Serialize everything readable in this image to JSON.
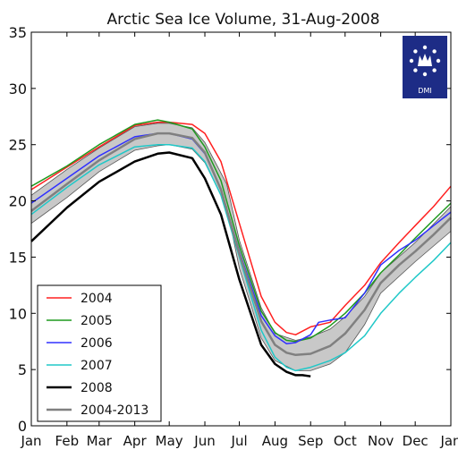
{
  "chart_data": {
    "type": "line",
    "title": "Arctic Sea Ice Volume, 31-Aug-2008",
    "ylabel": "",
    "xlabel": "",
    "ylim": [
      0,
      35
    ],
    "xlim": [
      0,
      365
    ],
    "yticks": [
      0,
      5,
      10,
      15,
      20,
      25,
      30,
      35
    ],
    "x_ticks": [
      {
        "label": "Jan",
        "x": 0
      },
      {
        "label": "Feb",
        "x": 31
      },
      {
        "label": "Mar",
        "x": 59
      },
      {
        "label": "Apr",
        "x": 90
      },
      {
        "label": "May",
        "x": 120
      },
      {
        "label": "Jun",
        "x": 151
      },
      {
        "label": "Jul",
        "x": 181
      },
      {
        "label": "Aug",
        "x": 212
      },
      {
        "label": "Sep",
        "x": 243
      },
      {
        "label": "Oct",
        "x": 273
      },
      {
        "label": "Nov",
        "x": 304
      },
      {
        "label": "Dec",
        "x": 334
      },
      {
        "label": "Jan",
        "x": 365
      }
    ],
    "grid": false,
    "legend_position": "bottom-left",
    "logo_text": "DMI",
    "band": {
      "name": "2004-2013 range",
      "x": [
        0,
        31,
        59,
        90,
        110,
        120,
        140,
        151,
        170,
        181,
        200,
        212,
        230,
        243,
        260,
        273,
        290,
        304,
        334,
        365
      ],
      "upper": [
        20.5,
        22.8,
        24.7,
        26.6,
        26.9,
        26.9,
        26.5,
        25.2,
        21.5,
        16.5,
        10.5,
        8.2,
        7.6,
        7.9,
        8.6,
        9.7,
        11.5,
        13.6,
        16.3,
        19.5
      ],
      "lower": [
        18.0,
        20.3,
        22.6,
        24.5,
        24.9,
        25.0,
        24.6,
        23.4,
        19.5,
        14.0,
        7.8,
        5.8,
        4.9,
        4.9,
        5.5,
        6.5,
        9.0,
        11.8,
        14.6,
        17.3
      ]
    },
    "series": [
      {
        "name": "2004",
        "color": "#ff2020",
        "width": 1.5,
        "x": [
          0,
          31,
          59,
          90,
          110,
          120,
          140,
          151,
          165,
          181,
          200,
          212,
          222,
          230,
          243,
          260,
          273,
          290,
          304,
          320,
          334,
          350,
          365
        ],
        "y": [
          21.0,
          23.0,
          24.8,
          26.7,
          27.0,
          27.0,
          26.8,
          26.0,
          23.5,
          18.0,
          11.5,
          9.2,
          8.3,
          8.1,
          8.8,
          9.2,
          10.7,
          12.5,
          14.5,
          16.3,
          17.8,
          19.5,
          21.3
        ]
      },
      {
        "name": "2005",
        "color": "#1f9a1f",
        "width": 1.5,
        "x": [
          0,
          31,
          59,
          90,
          110,
          120,
          140,
          151,
          165,
          181,
          200,
          212,
          222,
          230,
          243,
          260,
          273,
          290,
          304,
          320,
          334,
          350,
          365
        ],
        "y": [
          21.3,
          23.1,
          25.0,
          26.8,
          27.2,
          27.0,
          26.4,
          24.8,
          21.8,
          16.0,
          10.2,
          8.3,
          7.6,
          7.5,
          7.8,
          8.9,
          10.0,
          11.8,
          13.6,
          15.2,
          16.7,
          18.3,
          19.8
        ]
      },
      {
        "name": "2006",
        "color": "#3030ff",
        "width": 1.5,
        "x": [
          0,
          31,
          59,
          90,
          110,
          120,
          140,
          151,
          165,
          181,
          200,
          212,
          222,
          230,
          243,
          250,
          260,
          273,
          290,
          304,
          320,
          334,
          350,
          365
        ],
        "y": [
          19.8,
          22.0,
          24.0,
          25.7,
          26.0,
          26.0,
          25.5,
          24.2,
          21.0,
          15.5,
          9.8,
          8.0,
          7.3,
          7.4,
          8.1,
          9.2,
          9.4,
          9.6,
          11.8,
          14.3,
          15.6,
          16.5,
          17.8,
          19.0
        ]
      },
      {
        "name": "2007",
        "color": "#20c8c8",
        "width": 1.5,
        "x": [
          0,
          31,
          59,
          90,
          110,
          120,
          140,
          151,
          165,
          181,
          200,
          212,
          222,
          230,
          243,
          260,
          273,
          290,
          304,
          320,
          334,
          350,
          365
        ],
        "y": [
          18.8,
          21.2,
          23.2,
          24.8,
          25.0,
          25.0,
          24.7,
          23.5,
          20.5,
          15.0,
          8.5,
          6.1,
          5.2,
          4.9,
          5.2,
          5.8,
          6.5,
          8.0,
          10.0,
          11.8,
          13.2,
          14.7,
          16.3
        ]
      },
      {
        "name": "2008",
        "color": "#000000",
        "width": 2.5,
        "x": [
          0,
          31,
          59,
          90,
          110,
          120,
          140,
          151,
          165,
          181,
          200,
          212,
          222,
          230,
          236,
          243
        ],
        "y": [
          16.4,
          19.4,
          21.7,
          23.5,
          24.2,
          24.3,
          23.8,
          22.0,
          18.8,
          13.0,
          7.2,
          5.5,
          4.8,
          4.5,
          4.5,
          4.4
        ]
      },
      {
        "name": "2004-2013",
        "color": "#808080",
        "width": 2.5,
        "x": [
          0,
          31,
          59,
          90,
          110,
          120,
          140,
          151,
          165,
          181,
          200,
          212,
          222,
          230,
          243,
          260,
          273,
          290,
          304,
          320,
          334,
          350,
          365
        ],
        "y": [
          19.1,
          21.5,
          23.6,
          25.5,
          26.0,
          26.0,
          25.6,
          24.3,
          21.0,
          15.3,
          9.3,
          7.2,
          6.5,
          6.3,
          6.4,
          7.1,
          8.2,
          10.3,
          12.7,
          14.3,
          15.5,
          17.0,
          18.5
        ]
      }
    ]
  }
}
